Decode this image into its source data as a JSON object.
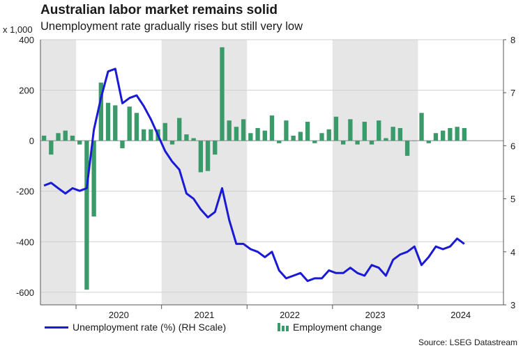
{
  "title": "Australian labor market remains solid",
  "subtitle": "Unemployment rate gradually rises but still very low",
  "unit_label": "x 1,000",
  "source": "Source: LSEG Datastream",
  "chart_data": {
    "type": "bar+line",
    "start_month": "2019-08",
    "left_axis": {
      "min": -650,
      "max": 400,
      "ticks": [
        400,
        200,
        0,
        -200,
        -400,
        -600
      ],
      "tick_labels": [
        "400",
        "200",
        "0",
        "-200",
        "-400",
        "-600"
      ]
    },
    "right_axis": {
      "min": 3,
      "max": 8,
      "ticks": [
        8,
        7,
        6,
        5,
        4,
        3
      ],
      "tick_labels": [
        "8",
        "7",
        "6",
        "5",
        "4",
        "3"
      ]
    },
    "x_labels": [
      "2020",
      "2021",
      "2022",
      "2023",
      "2024"
    ],
    "shaded_years": [
      2019,
      2021,
      2023
    ],
    "series": [
      {
        "name": "Employment change",
        "legend": "Employment change",
        "axis": "left",
        "color": "#3a9a6a",
        "values": [
          20,
          -55,
          30,
          40,
          20,
          -15,
          -590,
          -300,
          230,
          150,
          140,
          -30,
          135,
          110,
          45,
          45,
          45,
          70,
          -15,
          90,
          25,
          10,
          -125,
          -120,
          -55,
          370,
          80,
          55,
          85,
          30,
          50,
          40,
          100,
          -10,
          80,
          20,
          35,
          75,
          -10,
          30,
          45,
          95,
          -15,
          85,
          -15,
          75,
          -15,
          80,
          10,
          55,
          50,
          -60,
          0,
          110,
          -10,
          30,
          40,
          50,
          55,
          50
        ]
      },
      {
        "name": "Unemployment rate (%)",
        "legend": "Unemployment rate (%) (RH Scale)",
        "axis": "right",
        "color": "#1919d6",
        "values": [
          5.25,
          5.3,
          5.2,
          5.1,
          5.2,
          5.15,
          5.2,
          6.3,
          6.9,
          7.4,
          7.45,
          6.8,
          6.9,
          6.95,
          6.75,
          6.5,
          6.2,
          5.9,
          5.7,
          5.55,
          5.1,
          5.0,
          4.8,
          4.65,
          4.75,
          5.2,
          4.6,
          4.15,
          4.15,
          4.05,
          4.0,
          3.9,
          4.0,
          3.65,
          3.5,
          3.55,
          3.6,
          3.45,
          3.5,
          3.5,
          3.65,
          3.6,
          3.6,
          3.7,
          3.6,
          3.55,
          3.75,
          3.7,
          3.55,
          3.85,
          3.95,
          4.0,
          4.1,
          3.75,
          3.9,
          4.1,
          4.05,
          4.1,
          4.25,
          4.15
        ]
      }
    ]
  }
}
